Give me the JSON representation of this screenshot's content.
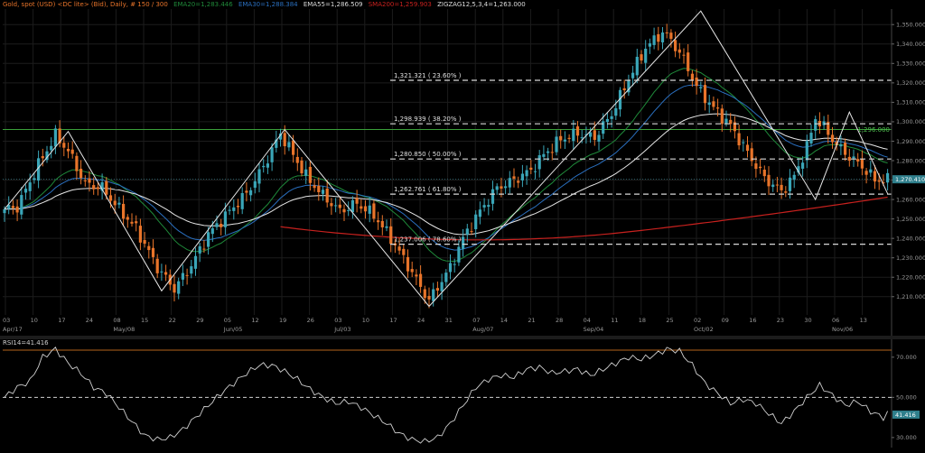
{
  "header": {
    "instrument": "Gold, spot (USD) <DC lite> (Bid), Daily, # 150 / 300",
    "ema20": "EMA20=1,283.446",
    "ema30": "EMA30=1,288.384",
    "ema55": "EMA55=1,286.509",
    "sma200": "SMA200=1,259.903",
    "zigzag": "ZIGZAG12,5,3,4=1,263.000"
  },
  "colors": {
    "background": "#000000",
    "bull": "#3aa6b8",
    "bear": "#e8742a",
    "ema20": "#1f8a3a",
    "ema30": "#2a6fbf",
    "ema55": "#e6e6e6",
    "sma200": "#c8211e",
    "zigzag": "#e6e6e6",
    "level": "#3aa03a"
  },
  "chart_data": [
    {
      "type": "candlestick",
      "instrument": "Gold, spot (USD)",
      "ylim": [
        1202,
        1358
      ],
      "y_ticks": [
        "1,210.000",
        "1,220.000",
        "1,230.000",
        "1,240.000",
        "1,250.000",
        "1,260.000",
        "1,270.000",
        "1,280.000",
        "1,290.000",
        "1,300.000",
        "1,310.000",
        "1,320.000",
        "1,330.000",
        "1,340.000",
        "1,350.000"
      ],
      "x_ticks": [
        "03",
        "10",
        "17",
        "24",
        "08",
        "15",
        "22",
        "29",
        "05",
        "12",
        "19",
        "26",
        "03",
        "10",
        "17",
        "24",
        "31",
        "07",
        "14",
        "21",
        "28",
        "04",
        "11",
        "18",
        "25",
        "02",
        "09",
        "16",
        "23",
        "30",
        "06",
        "13"
      ],
      "month_labels": [
        {
          "label": "Apr/17",
          "at_tick": 0
        },
        {
          "label": "May/08",
          "at_tick": 4
        },
        {
          "label": "Jun/05",
          "at_tick": 8
        },
        {
          "label": "Jul/03",
          "at_tick": 12
        },
        {
          "label": "Aug/07",
          "at_tick": 17
        },
        {
          "label": "Sep/04",
          "at_tick": 21
        },
        {
          "label": "Oct/02",
          "at_tick": 25
        },
        {
          "label": "Nov/06",
          "at_tick": 30
        }
      ],
      "close_waypoints": [
        [
          0,
          1255
        ],
        [
          3,
          1256
        ],
        [
          8,
          1278
        ],
        [
          12,
          1293
        ],
        [
          15,
          1285
        ],
        [
          19,
          1268
        ],
        [
          23,
          1266
        ],
        [
          27,
          1255
        ],
        [
          31,
          1245
        ],
        [
          36,
          1225
        ],
        [
          40,
          1214
        ],
        [
          44,
          1226
        ],
        [
          48,
          1242
        ],
        [
          53,
          1254
        ],
        [
          57,
          1263
        ],
        [
          61,
          1277
        ],
        [
          65,
          1294
        ],
        [
          68,
          1283
        ],
        [
          71,
          1272
        ],
        [
          75,
          1262
        ],
        [
          79,
          1254
        ],
        [
          83,
          1258
        ],
        [
          87,
          1252
        ],
        [
          91,
          1240
        ],
        [
          95,
          1226
        ],
        [
          98,
          1215
        ],
        [
          100,
          1208
        ],
        [
          102,
          1215
        ],
        [
          105,
          1225
        ],
        [
          108,
          1240
        ],
        [
          112,
          1254
        ],
        [
          116,
          1266
        ],
        [
          120,
          1270
        ],
        [
          124,
          1275
        ],
        [
          127,
          1283
        ],
        [
          131,
          1291
        ],
        [
          135,
          1294
        ],
        [
          139,
          1292
        ],
        [
          143,
          1304
        ],
        [
          147,
          1322
        ],
        [
          151,
          1338
        ],
        [
          155,
          1346
        ],
        [
          157,
          1342
        ],
        [
          160,
          1332
        ],
        [
          163,
          1318
        ],
        [
          167,
          1307
        ],
        [
          171,
          1298
        ],
        [
          175,
          1284
        ],
        [
          179,
          1271
        ],
        [
          183,
          1264
        ],
        [
          186,
          1272
        ],
        [
          189,
          1287
        ],
        [
          191,
          1302
        ],
        [
          193,
          1297
        ],
        [
          196,
          1288
        ],
        [
          199,
          1282
        ],
        [
          202,
          1277
        ],
        [
          205,
          1270
        ]
      ],
      "current_price": "1,270.410",
      "horizontal_level": {
        "value": 1296,
        "label": "1,296.000"
      },
      "fibonacci": [
        {
          "value": 1321.321,
          "label": "1,321.321 ( 23.60% )"
        },
        {
          "value": 1298.939,
          "label": "1,298.939 ( 38.20% )"
        },
        {
          "value": 1280.85,
          "label": "1,280.850 ( 50.00% )"
        },
        {
          "value": 1262.761,
          "label": "1,262.761 ( 61.80% )"
        },
        {
          "value": 1237.006,
          "label": "1,237.006 ( 78.60% )"
        }
      ],
      "zigzag": [
        [
          0,
          1255
        ],
        [
          15,
          1295
        ],
        [
          37,
          1213
        ],
        [
          66,
          1296
        ],
        [
          100,
          1205
        ],
        [
          164,
          1357
        ],
        [
          191,
          1260
        ],
        [
          199,
          1305
        ],
        [
          208,
          1263
        ]
      ]
    },
    {
      "type": "line",
      "title": "RSI14=41.416",
      "ylim": [
        25,
        78
      ],
      "y_ticks": [
        "70.000",
        "50.000",
        "30.000"
      ],
      "levels": [
        50,
        73.5
      ],
      "current_value": "41.416",
      "waypoints": [
        [
          0,
          50
        ],
        [
          3,
          55
        ],
        [
          6,
          58
        ],
        [
          9,
          70
        ],
        [
          12,
          74
        ],
        [
          15,
          67
        ],
        [
          18,
          62
        ],
        [
          21,
          55
        ],
        [
          24,
          52
        ],
        [
          27,
          45
        ],
        [
          30,
          38
        ],
        [
          33,
          31
        ],
        [
          36,
          29
        ],
        [
          39,
          30
        ],
        [
          42,
          34
        ],
        [
          45,
          40
        ],
        [
          48,
          46
        ],
        [
          51,
          52
        ],
        [
          54,
          57
        ],
        [
          57,
          62
        ],
        [
          60,
          66
        ],
        [
          63,
          66
        ],
        [
          66,
          63
        ],
        [
          69,
          59
        ],
        [
          72,
          54
        ],
        [
          75,
          50
        ],
        [
          78,
          47
        ],
        [
          81,
          48
        ],
        [
          84,
          45
        ],
        [
          87,
          41
        ],
        [
          90,
          37
        ],
        [
          93,
          32
        ],
        [
          96,
          29
        ],
        [
          99,
          28
        ],
        [
          102,
          30
        ],
        [
          105,
          37
        ],
        [
          108,
          46
        ],
        [
          111,
          55
        ],
        [
          114,
          59
        ],
        [
          117,
          61
        ],
        [
          120,
          60
        ],
        [
          123,
          64
        ],
        [
          126,
          65
        ],
        [
          129,
          62
        ],
        [
          132,
          63
        ],
        [
          135,
          64
        ],
        [
          138,
          61
        ],
        [
          141,
          64
        ],
        [
          144,
          67
        ],
        [
          147,
          70
        ],
        [
          150,
          69
        ],
        [
          153,
          71
        ],
        [
          156,
          74
        ],
        [
          159,
          73
        ],
        [
          162,
          66
        ],
        [
          165,
          57
        ],
        [
          168,
          52
        ],
        [
          171,
          47
        ],
        [
          174,
          49
        ],
        [
          177,
          47
        ],
        [
          180,
          42
        ],
        [
          183,
          37
        ],
        [
          186,
          43
        ],
        [
          189,
          50
        ],
        [
          192,
          56
        ],
        [
          195,
          51
        ],
        [
          198,
          46
        ],
        [
          201,
          48
        ],
        [
          204,
          43
        ],
        [
          207,
          40
        ],
        [
          208,
          42
        ]
      ]
    }
  ]
}
